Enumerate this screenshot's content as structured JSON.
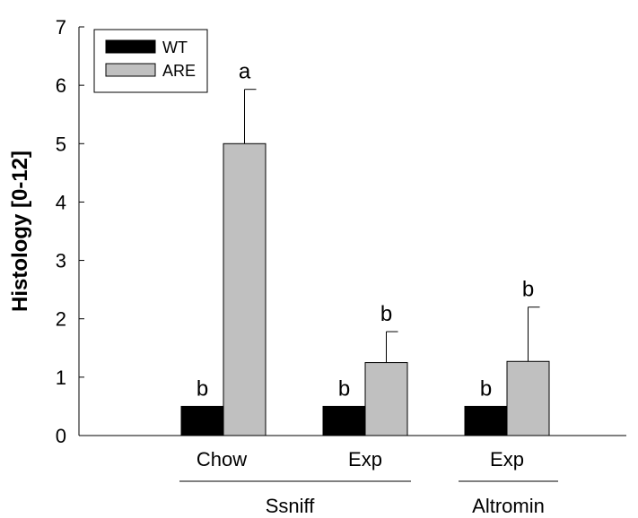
{
  "chart_data": {
    "type": "bar",
    "ylabel": "Histology [0-12]",
    "ylim": [
      0,
      7
    ],
    "yticks": [
      0,
      1,
      2,
      3,
      4,
      5,
      6,
      7
    ],
    "categories": [
      "Chow",
      "Exp",
      "Exp"
    ],
    "groups": [
      {
        "label": "Ssniff",
        "categories": [
          0,
          1
        ]
      },
      {
        "label": "Altromin",
        "categories": [
          2
        ]
      }
    ],
    "series": [
      {
        "name": "WT",
        "color": "#000000",
        "values": [
          0.5,
          0.5,
          0.5
        ],
        "errors": [
          null,
          null,
          null
        ],
        "labels": [
          "b",
          "b",
          "b"
        ]
      },
      {
        "name": "ARE",
        "color": "#c0c0c0",
        "values": [
          5.0,
          1.25,
          1.27
        ],
        "errors": [
          0.93,
          0.53,
          0.93
        ],
        "labels": [
          "a",
          "b",
          "b"
        ]
      }
    ],
    "legend": "top-left",
    "grid": false
  }
}
